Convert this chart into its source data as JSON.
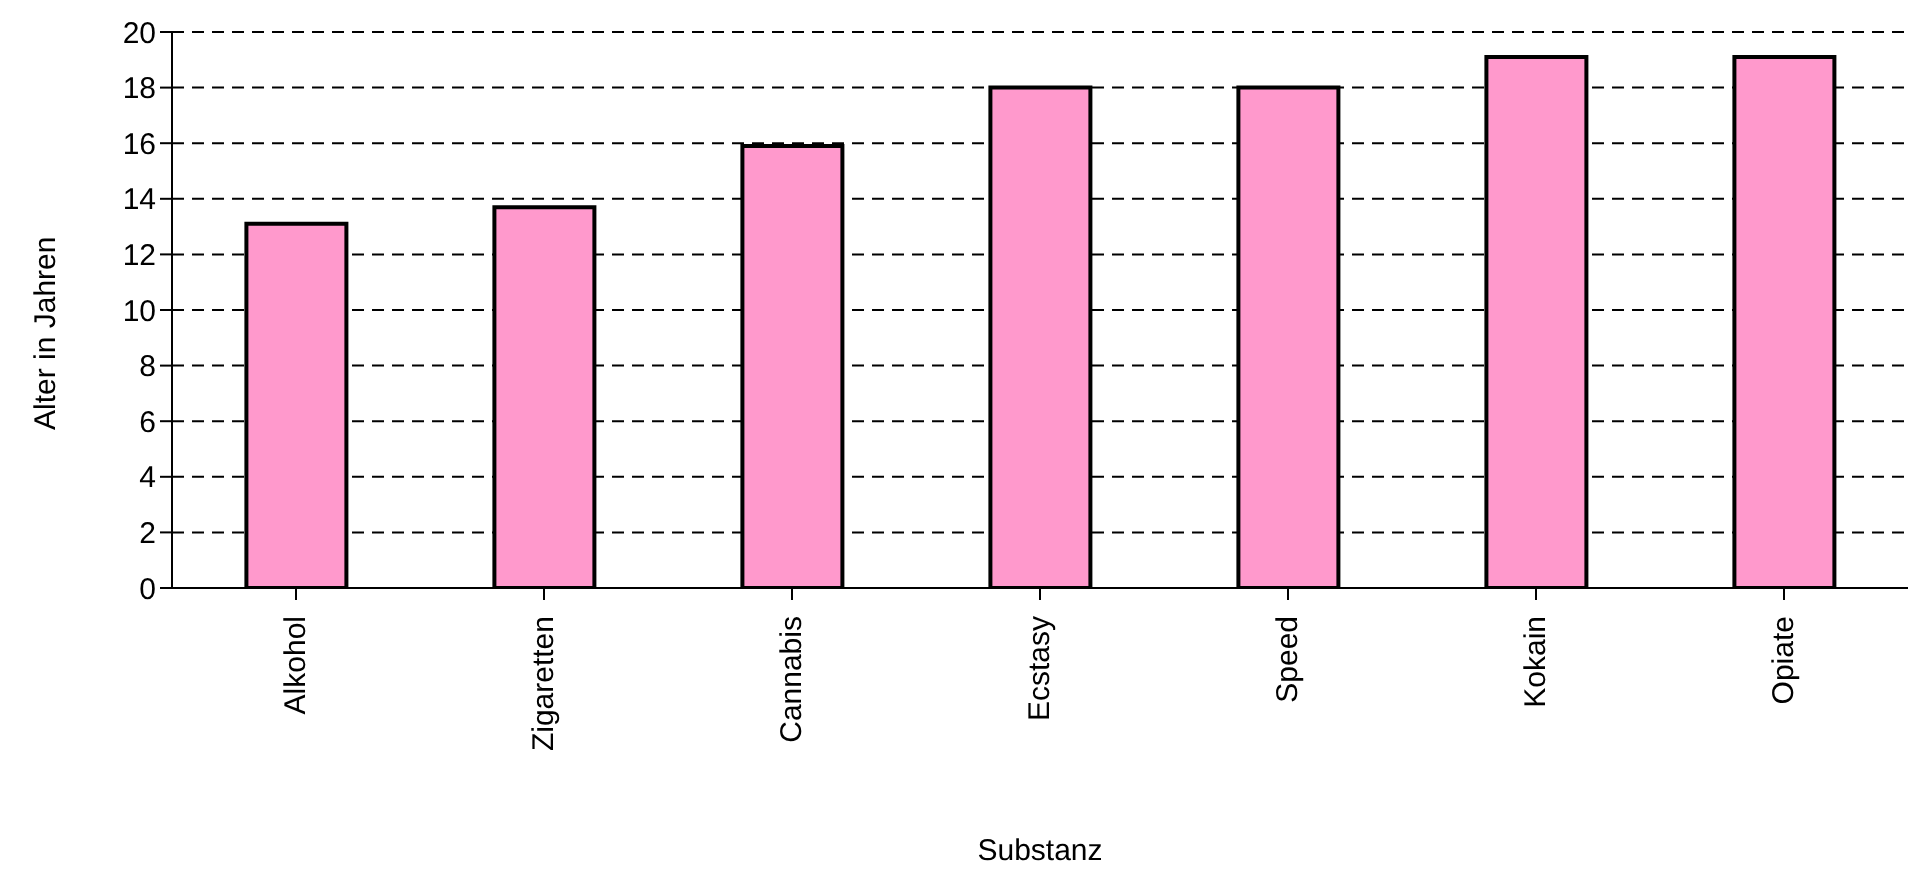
{
  "chart_data": {
    "type": "bar",
    "xlabel": "Substanz",
    "ylabel": "Alter in Jahren",
    "categories": [
      "Alkohol",
      "Zigaretten",
      "Cannabis",
      "Ecstasy",
      "Speed",
      "Kokain",
      "Opiate"
    ],
    "values": [
      13.1,
      13.7,
      15.9,
      18,
      18,
      19.1,
      19.1
    ],
    "color": "#ff99cc",
    "ylim": [
      0,
      20
    ],
    "yticks": [
      0,
      2,
      4,
      6,
      8,
      10,
      12,
      14,
      16,
      18,
      20
    ],
    "grid": "y",
    "legend": false
  }
}
